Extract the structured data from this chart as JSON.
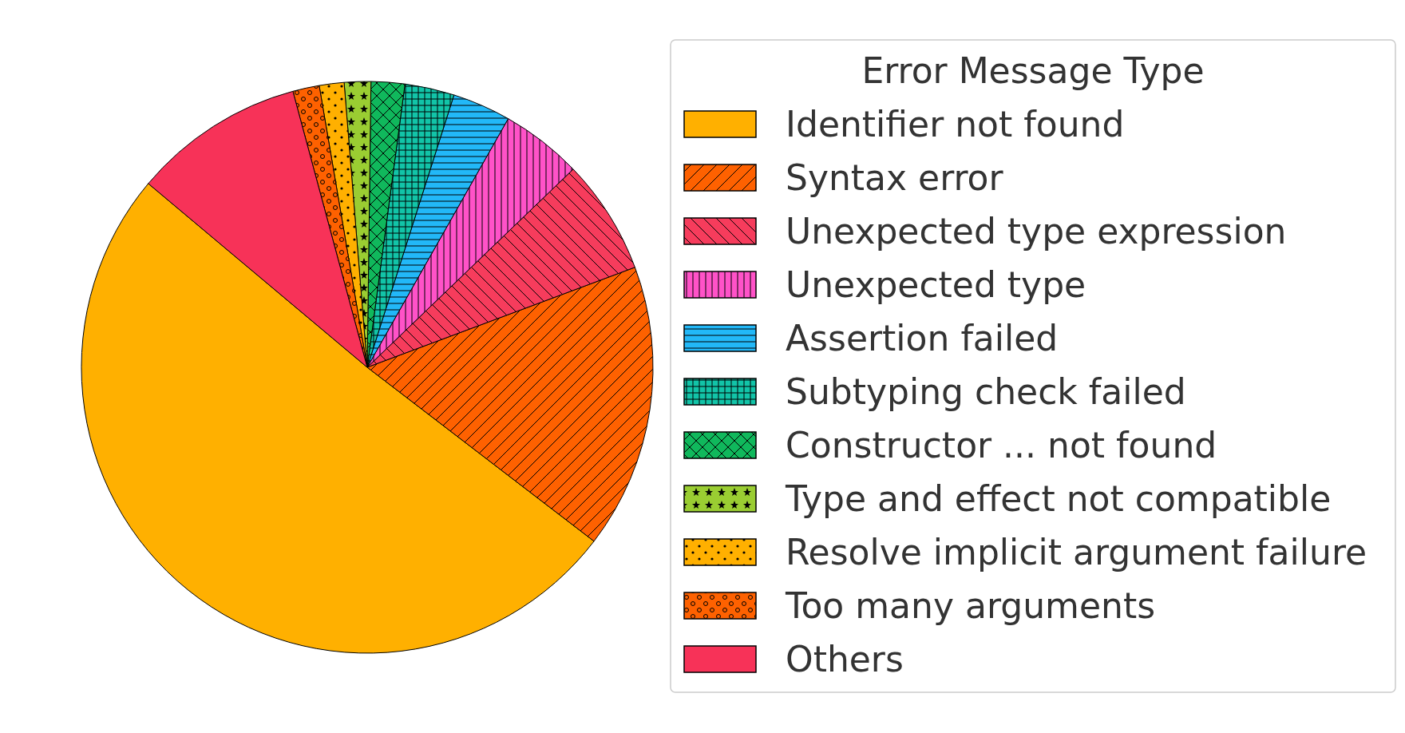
{
  "chart_data": {
    "type": "pie",
    "legend_title": "Error Message Type",
    "legend": "right",
    "categories": [
      "Identifier not found",
      "Syntax error",
      "Unexpected type expression",
      "Unexpected type",
      "Assertion failed",
      "Subtyping check failed",
      "Constructor ... not found",
      "Type and effect not compatible",
      "Resolve implicit argument failure",
      "Too many arguments",
      "Others"
    ],
    "values": [
      50.7,
      16.1,
      6.5,
      4.6,
      3.3,
      2.8,
      1.9,
      1.5,
      1.4,
      1.5,
      9.7
    ],
    "colors": [
      "#ffb000",
      "#fe6100",
      "#f63c5c",
      "#ff52c8",
      "#22b8f8",
      "#12c4a8",
      "#10b85c",
      "#9acd32",
      "#ffb000",
      "#fe6100",
      "#f73258"
    ]
  }
}
